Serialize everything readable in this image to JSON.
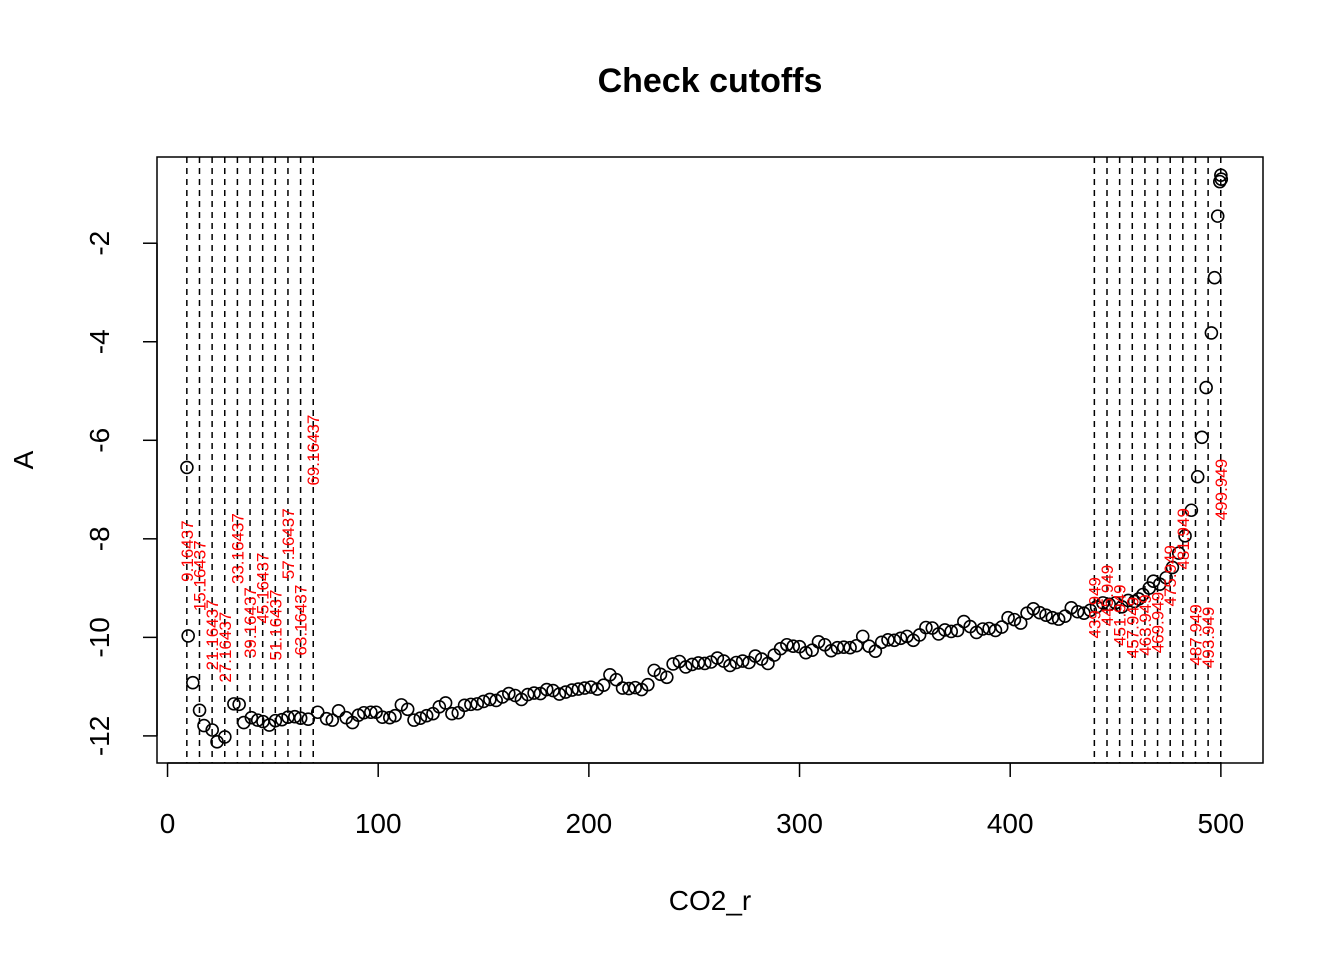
{
  "chart_data": {
    "type": "scatter",
    "title": "Check cutoffs",
    "xlabel": "CO2_r",
    "ylabel": "A",
    "xlim": [
      -5,
      520
    ],
    "ylim": [
      -12.55,
      -0.25
    ],
    "x_ticks": [
      0,
      100,
      200,
      300,
      400,
      500
    ],
    "y_ticks": [
      -2,
      -4,
      -6,
      -8,
      -10,
      -12
    ],
    "x_tick_labels": [
      "0",
      "100",
      "200",
      "300",
      "400",
      "500"
    ],
    "y_tick_labels": [
      "-2",
      "-4",
      "-6",
      "-8",
      "-10",
      "-12"
    ],
    "grid": false,
    "legend": "none",
    "point_color": "#000000",
    "cutoff_line_color": "#000000",
    "cutoff_label_color": "#ff0000",
    "points": [
      [
        9.2,
        -6.55
      ],
      [
        9.8,
        -9.97
      ],
      [
        12.0,
        -10.92
      ],
      [
        15.2,
        -11.48
      ],
      [
        17.3,
        -11.79
      ],
      [
        21.2,
        -11.88
      ],
      [
        23.5,
        -12.12
      ],
      [
        27.2,
        -12.02
      ],
      [
        31.5,
        -11.35
      ],
      [
        34.0,
        -11.36
      ],
      [
        36.2,
        -11.73
      ],
      [
        39.8,
        -11.63
      ],
      [
        42.8,
        -11.68
      ],
      [
        45.3,
        -11.71
      ],
      [
        48.3,
        -11.78
      ],
      [
        51.2,
        -11.69
      ],
      [
        54.3,
        -11.67
      ],
      [
        57.2,
        -11.62
      ],
      [
        60.4,
        -11.61
      ],
      [
        63.2,
        -11.64
      ],
      [
        66.8,
        -11.66
      ],
      [
        71.3,
        -11.52
      ],
      [
        75.5,
        -11.65
      ],
      [
        78.2,
        -11.68
      ],
      [
        81.2,
        -11.49
      ],
      [
        84.8,
        -11.63
      ],
      [
        87.8,
        -11.73
      ],
      [
        90.6,
        -11.58
      ],
      [
        93.2,
        -11.53
      ],
      [
        96.5,
        -11.52
      ],
      [
        99.0,
        -11.52
      ],
      [
        102.0,
        -11.62
      ],
      [
        105.5,
        -11.63
      ],
      [
        108.0,
        -11.59
      ],
      [
        111.0,
        -11.37
      ],
      [
        114.0,
        -11.46
      ],
      [
        117.0,
        -11.68
      ],
      [
        120.0,
        -11.64
      ],
      [
        123.0,
        -11.59
      ],
      [
        126.0,
        -11.55
      ],
      [
        129.0,
        -11.41
      ],
      [
        132.0,
        -11.33
      ],
      [
        135.0,
        -11.55
      ],
      [
        138.0,
        -11.53
      ],
      [
        141.0,
        -11.38
      ],
      [
        144.0,
        -11.36
      ],
      [
        147.0,
        -11.35
      ],
      [
        150.0,
        -11.3
      ],
      [
        153.0,
        -11.26
      ],
      [
        156.0,
        -11.28
      ],
      [
        159.0,
        -11.21
      ],
      [
        162.0,
        -11.14
      ],
      [
        165.0,
        -11.18
      ],
      [
        168.0,
        -11.26
      ],
      [
        171.0,
        -11.16
      ],
      [
        174.0,
        -11.13
      ],
      [
        177.0,
        -11.14
      ],
      [
        180.0,
        -11.06
      ],
      [
        183.0,
        -11.08
      ],
      [
        186.0,
        -11.15
      ],
      [
        189.0,
        -11.11
      ],
      [
        192.0,
        -11.07
      ],
      [
        195.0,
        -11.05
      ],
      [
        198.0,
        -11.03
      ],
      [
        201.0,
        -11.01
      ],
      [
        204.0,
        -11.05
      ],
      [
        207.0,
        -10.97
      ],
      [
        210.0,
        -10.76
      ],
      [
        213.0,
        -10.86
      ],
      [
        216.0,
        -11.03
      ],
      [
        219.0,
        -11.04
      ],
      [
        222.0,
        -11.02
      ],
      [
        225.0,
        -11.06
      ],
      [
        228.0,
        -10.96
      ],
      [
        231.0,
        -10.67
      ],
      [
        234.0,
        -10.75
      ],
      [
        237.0,
        -10.81
      ],
      [
        240.0,
        -10.54
      ],
      [
        243.0,
        -10.49
      ],
      [
        246.0,
        -10.6
      ],
      [
        249.0,
        -10.55
      ],
      [
        252.0,
        -10.52
      ],
      [
        255.0,
        -10.53
      ],
      [
        258.0,
        -10.5
      ],
      [
        261.0,
        -10.42
      ],
      [
        264.0,
        -10.48
      ],
      [
        267.0,
        -10.57
      ],
      [
        270.0,
        -10.51
      ],
      [
        273.0,
        -10.48
      ],
      [
        276.0,
        -10.51
      ],
      [
        279.0,
        -10.38
      ],
      [
        282.0,
        -10.44
      ],
      [
        285.0,
        -10.53
      ],
      [
        288.0,
        -10.36
      ],
      [
        291.0,
        -10.23
      ],
      [
        294.0,
        -10.15
      ],
      [
        297.0,
        -10.18
      ],
      [
        300.0,
        -10.19
      ],
      [
        303.0,
        -10.31
      ],
      [
        306.0,
        -10.26
      ],
      [
        309.0,
        -10.09
      ],
      [
        312.0,
        -10.15
      ],
      [
        315.0,
        -10.27
      ],
      [
        318.0,
        -10.21
      ],
      [
        321.0,
        -10.2
      ],
      [
        324.0,
        -10.21
      ],
      [
        327.0,
        -10.17
      ],
      [
        330.0,
        -9.98
      ],
      [
        333.0,
        -10.18
      ],
      [
        336.0,
        -10.28
      ],
      [
        339.0,
        -10.1
      ],
      [
        342.0,
        -10.05
      ],
      [
        345.0,
        -10.06
      ],
      [
        348.0,
        -10.02
      ],
      [
        351.0,
        -9.98
      ],
      [
        354.0,
        -10.06
      ],
      [
        357.0,
        -9.95
      ],
      [
        360.0,
        -9.8
      ],
      [
        363.0,
        -9.81
      ],
      [
        366.0,
        -9.93
      ],
      [
        369.0,
        -9.85
      ],
      [
        372.0,
        -9.88
      ],
      [
        375.0,
        -9.86
      ],
      [
        378.0,
        -9.68
      ],
      [
        381.0,
        -9.78
      ],
      [
        384.0,
        -9.9
      ],
      [
        387.0,
        -9.83
      ],
      [
        390.0,
        -9.82
      ],
      [
        393.0,
        -9.86
      ],
      [
        396.0,
        -9.79
      ],
      [
        399.0,
        -9.6
      ],
      [
        402.0,
        -9.64
      ],
      [
        405.0,
        -9.71
      ],
      [
        408.0,
        -9.51
      ],
      [
        411.0,
        -9.42
      ],
      [
        414.0,
        -9.5
      ],
      [
        417.0,
        -9.55
      ],
      [
        420.0,
        -9.6
      ],
      [
        423.0,
        -9.63
      ],
      [
        426.0,
        -9.57
      ],
      [
        429.0,
        -9.4
      ],
      [
        432.0,
        -9.48
      ],
      [
        435.0,
        -9.51
      ],
      [
        438.0,
        -9.45
      ],
      [
        441.0,
        -9.38
      ],
      [
        444.0,
        -9.3
      ],
      [
        447.0,
        -9.33
      ],
      [
        450.0,
        -9.3
      ],
      [
        453.0,
        -9.38
      ],
      [
        456.0,
        -9.25
      ],
      [
        459.0,
        -9.27
      ],
      [
        461.0,
        -9.22
      ],
      [
        463.0,
        -9.13
      ],
      [
        466.0,
        -9.0
      ],
      [
        468.0,
        -8.86
      ],
      [
        471.0,
        -8.92
      ],
      [
        474.0,
        -8.79
      ],
      [
        477.0,
        -8.58
      ],
      [
        480.0,
        -8.29
      ],
      [
        483.0,
        -7.94
      ],
      [
        486.0,
        -7.42
      ],
      [
        489.0,
        -6.74
      ],
      [
        491.0,
        -5.94
      ],
      [
        493.0,
        -4.93
      ],
      [
        495.5,
        -3.82
      ],
      [
        497.0,
        -2.7
      ],
      [
        498.5,
        -1.45
      ],
      [
        499.5,
        -0.75
      ],
      [
        500.0,
        -0.62
      ],
      [
        500.2,
        -0.7
      ]
    ],
    "cutoffs_low": [
      9.16437,
      15.16437,
      21.16437,
      27.16437,
      33.16437,
      39.16437,
      45.16437,
      51.16437,
      57.16437,
      63.16437,
      69.16437
    ],
    "cutoff_labels_low": [
      "9.16437",
      "15.16437",
      "21.16437",
      "27.16437",
      "33.16437",
      "39.16437",
      "45.16437",
      "51.16437",
      "57.16437",
      "63.16437",
      "69.16437"
    ],
    "cutoff_label_y_low": [
      -8.25,
      -8.75,
      -9.95,
      -10.2,
      -8.2,
      -9.7,
      -9.0,
      -9.75,
      -8.1,
      -9.65,
      -6.2
    ],
    "cutoffs_high": [
      439.949,
      445.949,
      451.949,
      457.949,
      463.949,
      469.949,
      475.949,
      481.949,
      487.949,
      493.949,
      499.949
    ],
    "cutoff_labels_high": [
      "439.949",
      "445.949",
      "451.949",
      "457.949",
      "463.949",
      "469.949",
      "475.949",
      "481.949",
      "487.949",
      "493.949",
      "499.949"
    ],
    "cutoff_label_y_high": [
      -9.4,
      -9.15,
      -9.55,
      -9.8,
      -9.75,
      -9.7,
      -8.75,
      -8.0,
      -9.95,
      -10.0,
      -7.0
    ]
  }
}
